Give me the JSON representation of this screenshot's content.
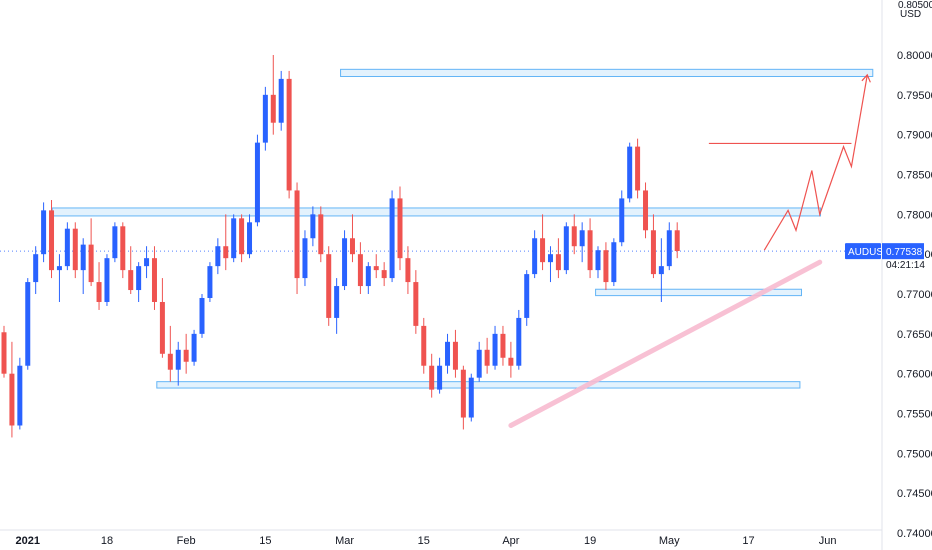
{
  "chart_data": {
    "type": "candlestick",
    "symbol": "AUDUSD",
    "currency": "USD",
    "axis_top_partial": "0.80500",
    "last_price": "0.77538",
    "countdown": "04:21:14",
    "ylim": [
      0.7385,
      0.8064
    ],
    "yticks": [
      "0.80000",
      "0.79500",
      "0.79000",
      "0.78500",
      "0.78000",
      "0.77500",
      "0.77000",
      "0.76500",
      "0.76000",
      "0.75500",
      "0.75000",
      "0.74500",
      "0.74000"
    ],
    "xticks": [
      {
        "label": "2021",
        "bar": 3,
        "bold": true
      },
      {
        "label": "18",
        "bar": 13
      },
      {
        "label": "Feb",
        "bar": 23
      },
      {
        "label": "15",
        "bar": 33
      },
      {
        "label": "Mar",
        "bar": 43
      },
      {
        "label": "15",
        "bar": 53
      },
      {
        "label": "Apr",
        "bar": 64
      },
      {
        "label": "19",
        "bar": 74
      },
      {
        "label": "May",
        "bar": 84
      },
      {
        "label": "17",
        "bar": 94
      },
      {
        "label": "Jun",
        "bar": 104
      }
    ],
    "candles": [
      [
        0.7652,
        0.766,
        0.7595,
        0.76
      ],
      [
        0.76,
        0.764,
        0.752,
        0.7535
      ],
      [
        0.7535,
        0.762,
        0.753,
        0.761
      ],
      [
        0.761,
        0.772,
        0.7605,
        0.7715
      ],
      [
        0.7715,
        0.776,
        0.77,
        0.775
      ],
      [
        0.775,
        0.7815,
        0.774,
        0.7805
      ],
      [
        0.7805,
        0.7818,
        0.772,
        0.773
      ],
      [
        0.773,
        0.775,
        0.769,
        0.7735
      ],
      [
        0.7735,
        0.779,
        0.773,
        0.7782
      ],
      [
        0.7782,
        0.779,
        0.772,
        0.773
      ],
      [
        0.773,
        0.777,
        0.77,
        0.7762
      ],
      [
        0.7762,
        0.7795,
        0.771,
        0.7715
      ],
      [
        0.7715,
        0.774,
        0.768,
        0.769
      ],
      [
        0.769,
        0.775,
        0.7685,
        0.7745
      ],
      [
        0.7745,
        0.779,
        0.774,
        0.7785
      ],
      [
        0.7785,
        0.779,
        0.772,
        0.773
      ],
      [
        0.773,
        0.776,
        0.77,
        0.7705
      ],
      [
        0.7705,
        0.774,
        0.769,
        0.7735
      ],
      [
        0.7735,
        0.776,
        0.772,
        0.7745
      ],
      [
        0.7745,
        0.776,
        0.768,
        0.769
      ],
      [
        0.769,
        0.772,
        0.762,
        0.7625
      ],
      [
        0.7625,
        0.766,
        0.759,
        0.7605
      ],
      [
        0.7605,
        0.764,
        0.7585,
        0.763
      ],
      [
        0.763,
        0.765,
        0.76,
        0.7615
      ],
      [
        0.7615,
        0.7655,
        0.761,
        0.765
      ],
      [
        0.765,
        0.77,
        0.7645,
        0.7695
      ],
      [
        0.7695,
        0.774,
        0.769,
        0.7735
      ],
      [
        0.7735,
        0.777,
        0.7725,
        0.776
      ],
      [
        0.776,
        0.78,
        0.773,
        0.7745
      ],
      [
        0.7745,
        0.78,
        0.774,
        0.7795
      ],
      [
        0.7795,
        0.78,
        0.774,
        0.775
      ],
      [
        0.775,
        0.78,
        0.7745,
        0.779
      ],
      [
        0.779,
        0.79,
        0.7785,
        0.789
      ],
      [
        0.789,
        0.796,
        0.788,
        0.795
      ],
      [
        0.795,
        0.8,
        0.79,
        0.7915
      ],
      [
        0.7915,
        0.798,
        0.7905,
        0.797
      ],
      [
        0.797,
        0.798,
        0.782,
        0.783
      ],
      [
        0.783,
        0.784,
        0.77,
        0.772
      ],
      [
        0.772,
        0.778,
        0.771,
        0.777
      ],
      [
        0.777,
        0.781,
        0.776,
        0.78
      ],
      [
        0.78,
        0.781,
        0.774,
        0.775
      ],
      [
        0.775,
        0.776,
        0.766,
        0.767
      ],
      [
        0.767,
        0.772,
        0.765,
        0.771
      ],
      [
        0.771,
        0.778,
        0.7705,
        0.777
      ],
      [
        0.777,
        0.78,
        0.774,
        0.775
      ],
      [
        0.775,
        0.7765,
        0.77,
        0.771
      ],
      [
        0.771,
        0.774,
        0.77,
        0.7735
      ],
      [
        0.7735,
        0.775,
        0.772,
        0.773
      ],
      [
        0.773,
        0.774,
        0.771,
        0.772
      ],
      [
        0.772,
        0.783,
        0.7715,
        0.782
      ],
      [
        0.782,
        0.7835,
        0.773,
        0.7745
      ],
      [
        0.7745,
        0.776,
        0.77,
        0.7715
      ],
      [
        0.7715,
        0.773,
        0.765,
        0.766
      ],
      [
        0.766,
        0.767,
        0.76,
        0.761
      ],
      [
        0.761,
        0.7625,
        0.757,
        0.758
      ],
      [
        0.758,
        0.762,
        0.7575,
        0.761
      ],
      [
        0.761,
        0.765,
        0.76,
        0.764
      ],
      [
        0.764,
        0.7655,
        0.7595,
        0.7605
      ],
      [
        0.7605,
        0.761,
        0.753,
        0.7545
      ],
      [
        0.7545,
        0.76,
        0.754,
        0.7595
      ],
      [
        0.7595,
        0.764,
        0.759,
        0.763
      ],
      [
        0.763,
        0.7645,
        0.76,
        0.761
      ],
      [
        0.761,
        0.766,
        0.7605,
        0.765
      ],
      [
        0.765,
        0.766,
        0.761,
        0.762
      ],
      [
        0.762,
        0.764,
        0.7595,
        0.761
      ],
      [
        0.761,
        0.768,
        0.7605,
        0.767
      ],
      [
        0.767,
        0.773,
        0.766,
        0.7725
      ],
      [
        0.7725,
        0.778,
        0.772,
        0.777
      ],
      [
        0.777,
        0.78,
        0.773,
        0.774
      ],
      [
        0.774,
        0.776,
        0.7715,
        0.775
      ],
      [
        0.775,
        0.777,
        0.772,
        0.773
      ],
      [
        0.773,
        0.779,
        0.7725,
        0.7785
      ],
      [
        0.7785,
        0.78,
        0.775,
        0.776
      ],
      [
        0.776,
        0.779,
        0.774,
        0.778
      ],
      [
        0.778,
        0.7795,
        0.772,
        0.773
      ],
      [
        0.773,
        0.776,
        0.772,
        0.7755
      ],
      [
        0.7755,
        0.7765,
        0.7705,
        0.7715
      ],
      [
        0.7715,
        0.777,
        0.771,
        0.7765
      ],
      [
        0.7765,
        0.783,
        0.776,
        0.782
      ],
      [
        0.782,
        0.789,
        0.7815,
        0.7885
      ],
      [
        0.7885,
        0.7895,
        0.782,
        0.783
      ],
      [
        0.783,
        0.784,
        0.777,
        0.778
      ],
      [
        0.778,
        0.78,
        0.772,
        0.7725
      ],
      [
        0.7725,
        0.777,
        0.769,
        0.7735
      ],
      [
        0.7735,
        0.779,
        0.773,
        0.778
      ],
      [
        0.778,
        0.779,
        0.7745,
        0.7754
      ]
    ],
    "annotations": {
      "resistance_top": [
        0.7973,
        0.7982
      ],
      "resistance_mid": [
        0.7798,
        0.7808
      ],
      "support_mid": [
        0.7698,
        0.7706
      ],
      "support_low": [
        0.7582,
        0.759
      ],
      "trendline": [
        [
          64,
          0.7535
        ],
        [
          103,
          0.774
        ]
      ],
      "projection": [
        [
          96,
          0.7755
        ],
        [
          99,
          0.7805
        ],
        [
          100,
          0.778
        ],
        [
          102,
          0.7855
        ],
        [
          103,
          0.78
        ],
        [
          106,
          0.7885
        ],
        [
          107,
          0.786
        ],
        [
          109,
          0.7975
        ]
      ],
      "hline_red": [
        [
          89,
          0.7889
        ],
        [
          107,
          0.7889
        ]
      ]
    }
  },
  "colors": {
    "up": "#2962FF",
    "down": "#EF5350",
    "zone_fill": "#E3F2FD",
    "zone_stroke": "#64B5F6",
    "trend": "#F8BBD0",
    "proj": "#EF5350",
    "tag_bg": "#2962FF"
  }
}
